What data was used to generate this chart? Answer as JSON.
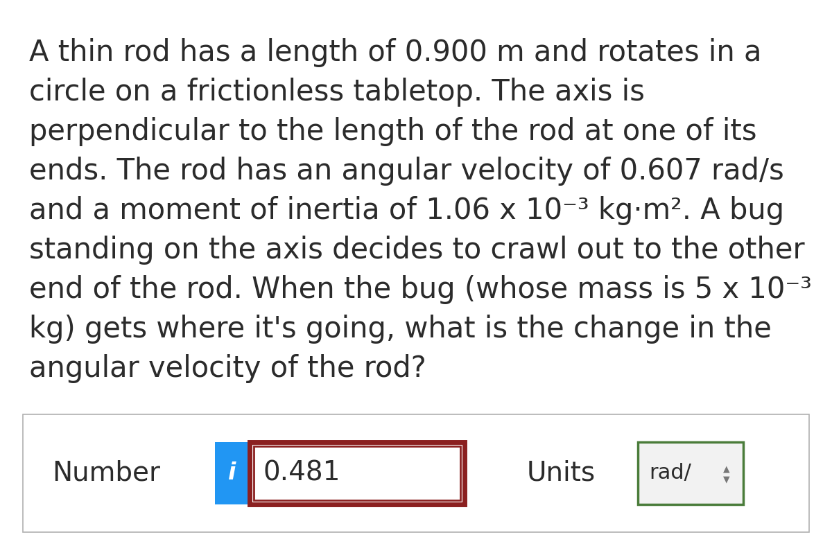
{
  "background_color": "#ffffff",
  "text_color": "#2b2b2b",
  "question_lines": [
    "A thin rod has a length of 0.900 m and rotates in a",
    "circle on a frictionless tabletop. The axis is",
    "perpendicular to the length of the rod at one of its",
    "ends. The rod has an angular velocity of 0.607 rad/s",
    "and a moment of inertia of 1.06 x 10⁻³ kg·m². A bug",
    "standing on the axis decides to crawl out to the other",
    "end of the rod. When the bug (whose mass is 5 x 10⁻³",
    "kg) gets where it's going, what is the change in the",
    "angular velocity of the rod?"
  ],
  "number_label": "Number",
  "number_value": "0.481",
  "units_label": "Units",
  "units_value": "rad/",
  "info_button_color": "#2196f3",
  "input_outer_border_color": "#8b2020",
  "input_inner_border_color": "#8b2020",
  "units_border_color": "#4a7c3a",
  "units_bg_color": "#f2f2f2",
  "bottom_box_border_color": "#b0b0b0",
  "font_size_question": 30,
  "font_size_answer": 28
}
